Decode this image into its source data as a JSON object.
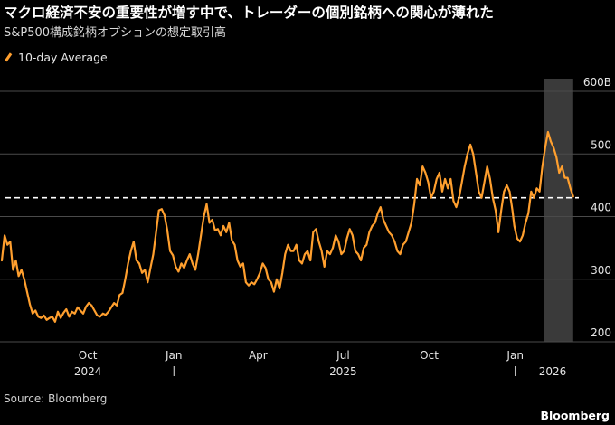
{
  "title": "マクロ経済不安の重要性が増す中で、トレーダーの個別銘柄への関心が薄れた",
  "subtitle": "S&P500構成銘柄オプションの想定取引高",
  "source": "Source: Bloomberg",
  "brand": "Bloomberg",
  "colors": {
    "line": "#ff9f2e",
    "grid": "#4a4a4a",
    "shade": "#3a3a3a",
    "background": "#000000"
  },
  "chart_data": {
    "type": "line",
    "y_unit": "B",
    "ylim": [
      200,
      600
    ],
    "y_ticks": [
      {
        "value": 600,
        "label": "600B"
      },
      {
        "value": 500,
        "label": "500"
      },
      {
        "value": 400,
        "label": "400"
      },
      {
        "value": 300,
        "label": "300"
      },
      {
        "value": 200,
        "label": "200"
      }
    ],
    "x_ticks": [
      {
        "date": "2024-10-01",
        "label": "Oct"
      },
      {
        "date": "2025-01-01",
        "label": "Jan"
      },
      {
        "date": "2025-04-01",
        "label": "Apr"
      },
      {
        "date": "2025-07-01",
        "label": "Jul"
      },
      {
        "date": "2025-10-01",
        "label": "Oct"
      },
      {
        "date": "2026-01-01",
        "label": "Jan"
      }
    ],
    "year_labels": [
      {
        "date": "2024-10-01",
        "label": "2024"
      },
      {
        "date": "2025-07-01",
        "label": "2025"
      },
      {
        "date": "2026-02-10",
        "label": "2026"
      }
    ],
    "year_separators": [
      "2025-01-01",
      "2026-01-01"
    ],
    "shaded_range": [
      "2026-02-01",
      "2026-03-04"
    ],
    "reference_line": 430,
    "legend_position": "top-left",
    "series": [
      {
        "name": "10-day Average",
        "points": [
          [
            "2024-07-01",
            330
          ],
          [
            "2024-07-04",
            370
          ],
          [
            "2024-07-07",
            355
          ],
          [
            "2024-07-10",
            360
          ],
          [
            "2024-07-13",
            315
          ],
          [
            "2024-07-16",
            330
          ],
          [
            "2024-07-19",
            305
          ],
          [
            "2024-07-22",
            315
          ],
          [
            "2024-07-25",
            300
          ],
          [
            "2024-07-28",
            280
          ],
          [
            "2024-07-31",
            260
          ],
          [
            "2024-08-03",
            245
          ],
          [
            "2024-08-06",
            250
          ],
          [
            "2024-08-09",
            240
          ],
          [
            "2024-08-12",
            238
          ],
          [
            "2024-08-15",
            242
          ],
          [
            "2024-08-18",
            235
          ],
          [
            "2024-08-21",
            238
          ],
          [
            "2024-08-24",
            240
          ],
          [
            "2024-08-27",
            232
          ],
          [
            "2024-08-30",
            248
          ],
          [
            "2024-09-02",
            238
          ],
          [
            "2024-09-05",
            246
          ],
          [
            "2024-09-08",
            252
          ],
          [
            "2024-09-11",
            240
          ],
          [
            "2024-09-14",
            248
          ],
          [
            "2024-09-17",
            245
          ],
          [
            "2024-09-20",
            255
          ],
          [
            "2024-09-23",
            250
          ],
          [
            "2024-09-26",
            245
          ],
          [
            "2024-09-29",
            256
          ],
          [
            "2024-10-02",
            262
          ],
          [
            "2024-10-05",
            258
          ],
          [
            "2024-10-08",
            250
          ],
          [
            "2024-10-11",
            242
          ],
          [
            "2024-10-14",
            240
          ],
          [
            "2024-10-17",
            245
          ],
          [
            "2024-10-20",
            243
          ],
          [
            "2024-10-23",
            248
          ],
          [
            "2024-10-26",
            255
          ],
          [
            "2024-10-29",
            262
          ],
          [
            "2024-11-01",
            258
          ],
          [
            "2024-11-04",
            275
          ],
          [
            "2024-11-07",
            278
          ],
          [
            "2024-11-10",
            300
          ],
          [
            "2024-11-13",
            325
          ],
          [
            "2024-11-16",
            345
          ],
          [
            "2024-11-19",
            360
          ],
          [
            "2024-11-22",
            330
          ],
          [
            "2024-11-25",
            325
          ],
          [
            "2024-11-28",
            310
          ],
          [
            "2024-12-01",
            315
          ],
          [
            "2024-12-04",
            295
          ],
          [
            "2024-12-07",
            318
          ],
          [
            "2024-12-10",
            340
          ],
          [
            "2024-12-13",
            375
          ],
          [
            "2024-12-16",
            410
          ],
          [
            "2024-12-19",
            412
          ],
          [
            "2024-12-22",
            402
          ],
          [
            "2024-12-25",
            378
          ],
          [
            "2024-12-28",
            345
          ],
          [
            "2024-12-31",
            338
          ],
          [
            "2025-01-03",
            320
          ],
          [
            "2025-01-06",
            312
          ],
          [
            "2025-01-09",
            325
          ],
          [
            "2025-01-12",
            318
          ],
          [
            "2025-01-15",
            330
          ],
          [
            "2025-01-18",
            340
          ],
          [
            "2025-01-21",
            325
          ],
          [
            "2025-01-24",
            315
          ],
          [
            "2025-01-27",
            340
          ],
          [
            "2025-01-30",
            370
          ],
          [
            "2025-02-02",
            400
          ],
          [
            "2025-02-05",
            420
          ],
          [
            "2025-02-08",
            390
          ],
          [
            "2025-02-11",
            395
          ],
          [
            "2025-02-14",
            378
          ],
          [
            "2025-02-17",
            380
          ],
          [
            "2025-02-20",
            370
          ],
          [
            "2025-02-23",
            385
          ],
          [
            "2025-02-26",
            375
          ],
          [
            "2025-03-01",
            390
          ],
          [
            "2025-03-04",
            362
          ],
          [
            "2025-03-07",
            355
          ],
          [
            "2025-03-10",
            330
          ],
          [
            "2025-03-13",
            320
          ],
          [
            "2025-03-16",
            325
          ],
          [
            "2025-03-19",
            295
          ],
          [
            "2025-03-22",
            290
          ],
          [
            "2025-03-25",
            295
          ],
          [
            "2025-03-28",
            292
          ],
          [
            "2025-03-31",
            300
          ],
          [
            "2025-04-03",
            310
          ],
          [
            "2025-04-06",
            325
          ],
          [
            "2025-04-09",
            318
          ],
          [
            "2025-04-12",
            300
          ],
          [
            "2025-04-15",
            295
          ],
          [
            "2025-04-18",
            280
          ],
          [
            "2025-04-21",
            300
          ],
          [
            "2025-04-24",
            285
          ],
          [
            "2025-04-27",
            310
          ],
          [
            "2025-04-30",
            340
          ],
          [
            "2025-05-03",
            355
          ],
          [
            "2025-05-06",
            345
          ],
          [
            "2025-05-09",
            345
          ],
          [
            "2025-05-12",
            355
          ],
          [
            "2025-05-15",
            330
          ],
          [
            "2025-05-18",
            325
          ],
          [
            "2025-05-21",
            340
          ],
          [
            "2025-05-24",
            345
          ],
          [
            "2025-05-27",
            330
          ],
          [
            "2025-05-30",
            375
          ],
          [
            "2025-06-02",
            380
          ],
          [
            "2025-06-05",
            360
          ],
          [
            "2025-06-08",
            345
          ],
          [
            "2025-06-11",
            320
          ],
          [
            "2025-06-14",
            345
          ],
          [
            "2025-06-17",
            340
          ],
          [
            "2025-06-20",
            350
          ],
          [
            "2025-06-23",
            370
          ],
          [
            "2025-06-26",
            360
          ],
          [
            "2025-06-29",
            340
          ],
          [
            "2025-07-02",
            345
          ],
          [
            "2025-07-05",
            365
          ],
          [
            "2025-07-08",
            380
          ],
          [
            "2025-07-11",
            370
          ],
          [
            "2025-07-14",
            345
          ],
          [
            "2025-07-17",
            340
          ],
          [
            "2025-07-20",
            330
          ],
          [
            "2025-07-23",
            350
          ],
          [
            "2025-07-26",
            355
          ],
          [
            "2025-07-29",
            375
          ],
          [
            "2025-08-01",
            385
          ],
          [
            "2025-08-04",
            390
          ],
          [
            "2025-08-07",
            405
          ],
          [
            "2025-08-10",
            415
          ],
          [
            "2025-08-13",
            395
          ],
          [
            "2025-08-16",
            385
          ],
          [
            "2025-08-19",
            375
          ],
          [
            "2025-08-22",
            370
          ],
          [
            "2025-08-25",
            360
          ],
          [
            "2025-08-28",
            345
          ],
          [
            "2025-08-31",
            340
          ],
          [
            "2025-09-03",
            355
          ],
          [
            "2025-09-06",
            360
          ],
          [
            "2025-09-09",
            375
          ],
          [
            "2025-09-12",
            390
          ],
          [
            "2025-09-15",
            420
          ],
          [
            "2025-09-18",
            460
          ],
          [
            "2025-09-21",
            450
          ],
          [
            "2025-09-24",
            480
          ],
          [
            "2025-09-27",
            470
          ],
          [
            "2025-09-30",
            455
          ],
          [
            "2025-10-03",
            430
          ],
          [
            "2025-10-06",
            440
          ],
          [
            "2025-10-09",
            460
          ],
          [
            "2025-10-12",
            470
          ],
          [
            "2025-10-15",
            440
          ],
          [
            "2025-10-18",
            460
          ],
          [
            "2025-10-21",
            445
          ],
          [
            "2025-10-24",
            460
          ],
          [
            "2025-10-27",
            425
          ],
          [
            "2025-10-30",
            415
          ],
          [
            "2025-11-02",
            430
          ],
          [
            "2025-11-05",
            455
          ],
          [
            "2025-11-08",
            480
          ],
          [
            "2025-11-11",
            500
          ],
          [
            "2025-11-14",
            515
          ],
          [
            "2025-11-17",
            500
          ],
          [
            "2025-11-20",
            470
          ],
          [
            "2025-11-23",
            440
          ],
          [
            "2025-11-26",
            430
          ],
          [
            "2025-11-29",
            455
          ],
          [
            "2025-12-02",
            480
          ],
          [
            "2025-12-05",
            460
          ],
          [
            "2025-12-08",
            430
          ],
          [
            "2025-12-11",
            410
          ],
          [
            "2025-12-14",
            375
          ],
          [
            "2025-12-17",
            410
          ],
          [
            "2025-12-20",
            440
          ],
          [
            "2025-12-23",
            450
          ],
          [
            "2025-12-26",
            440
          ],
          [
            "2025-12-29",
            410
          ],
          [
            "2025-12-31",
            385
          ],
          [
            "2026-01-03",
            365
          ],
          [
            "2026-01-06",
            360
          ],
          [
            "2026-01-09",
            370
          ],
          [
            "2026-01-12",
            390
          ],
          [
            "2026-01-15",
            405
          ],
          [
            "2026-01-18",
            440
          ],
          [
            "2026-01-21",
            430
          ],
          [
            "2026-01-24",
            445
          ],
          [
            "2026-01-27",
            440
          ],
          [
            "2026-01-30",
            480
          ],
          [
            "2026-02-02",
            510
          ],
          [
            "2026-02-05",
            535
          ],
          [
            "2026-02-08",
            520
          ],
          [
            "2026-02-11",
            510
          ],
          [
            "2026-02-14",
            495
          ],
          [
            "2026-02-17",
            470
          ],
          [
            "2026-02-20",
            480
          ],
          [
            "2026-02-23",
            462
          ],
          [
            "2026-02-26",
            462
          ],
          [
            "2026-03-01",
            445
          ],
          [
            "2026-03-04",
            432
          ]
        ]
      }
    ]
  }
}
